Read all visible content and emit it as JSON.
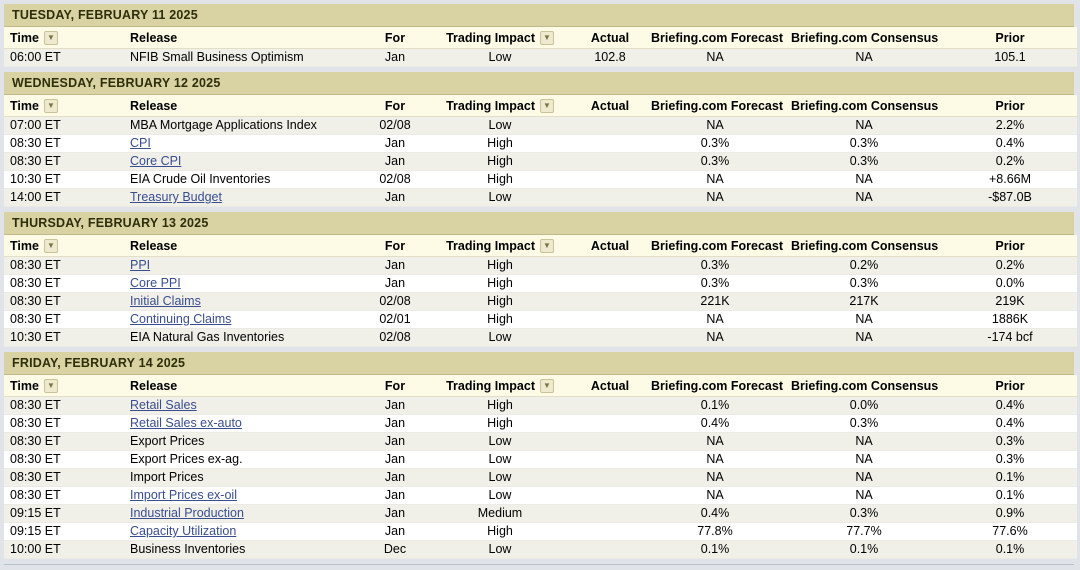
{
  "colors": {
    "page_bg": "#e0e3e7",
    "day_header_bg": "#d9d3a4",
    "header_row_bg": "#fdfae6",
    "row_alt_bg": "#f0f0e9",
    "link": "#3a4d8f"
  },
  "icons": {
    "sort_dropdown": "▼"
  },
  "columns": [
    {
      "id": "time",
      "label": "Time",
      "sortable": true
    },
    {
      "id": "release",
      "label": "Release",
      "sortable": false
    },
    {
      "id": "for",
      "label": "For",
      "sortable": false
    },
    {
      "id": "impact",
      "label": "Trading Impact",
      "sortable": true
    },
    {
      "id": "actual",
      "label": "Actual",
      "sortable": false
    },
    {
      "id": "forecast",
      "label": "Briefing.com Forecast",
      "sortable": false
    },
    {
      "id": "consensus",
      "label": "Briefing.com Consensus",
      "sortable": false
    },
    {
      "id": "prior",
      "label": "Prior",
      "sortable": false
    }
  ],
  "sections": [
    {
      "date_header": "TUESDAY, FEBRUARY 11 2025",
      "rows": [
        {
          "time": "06:00 ET",
          "release": "NFIB Small Business Optimism",
          "release_is_link": false,
          "for": "Jan",
          "impact": "Low",
          "actual": "102.8",
          "forecast": "NA",
          "consensus": "NA",
          "prior": "105.1"
        }
      ]
    },
    {
      "date_header": "WEDNESDAY, FEBRUARY 12 2025",
      "rows": [
        {
          "time": "07:00 ET",
          "release": "MBA Mortgage Applications Index",
          "release_is_link": false,
          "for": "02/08",
          "impact": "Low",
          "actual": "",
          "forecast": "NA",
          "consensus": "NA",
          "prior": "2.2%"
        },
        {
          "time": "08:30 ET",
          "release": "CPI",
          "release_is_link": true,
          "for": "Jan",
          "impact": "High",
          "actual": "",
          "forecast": "0.3%",
          "consensus": "0.3%",
          "prior": "0.4%"
        },
        {
          "time": "08:30 ET",
          "release": "Core CPI",
          "release_is_link": true,
          "for": "Jan",
          "impact": "High",
          "actual": "",
          "forecast": "0.3%",
          "consensus": "0.3%",
          "prior": "0.2%"
        },
        {
          "time": "10:30 ET",
          "release": "EIA Crude Oil Inventories",
          "release_is_link": false,
          "for": "02/08",
          "impact": "High",
          "actual": "",
          "forecast": "NA",
          "consensus": "NA",
          "prior": "+8.66M"
        },
        {
          "time": "14:00 ET",
          "release": "Treasury Budget",
          "release_is_link": true,
          "for": "Jan",
          "impact": "Low",
          "actual": "",
          "forecast": "NA",
          "consensus": "NA",
          "prior": "-$87.0B"
        }
      ]
    },
    {
      "date_header": "THURSDAY, FEBRUARY 13 2025",
      "rows": [
        {
          "time": "08:30 ET",
          "release": "PPI",
          "release_is_link": true,
          "for": "Jan",
          "impact": "High",
          "actual": "",
          "forecast": "0.3%",
          "consensus": "0.2%",
          "prior": "0.2%"
        },
        {
          "time": "08:30 ET",
          "release": "Core PPI",
          "release_is_link": true,
          "for": "Jan",
          "impact": "High",
          "actual": "",
          "forecast": "0.3%",
          "consensus": "0.3%",
          "prior": "0.0%"
        },
        {
          "time": "08:30 ET",
          "release": "Initial Claims",
          "release_is_link": true,
          "for": "02/08",
          "impact": "High",
          "actual": "",
          "forecast": "221K",
          "consensus": "217K",
          "prior": "219K"
        },
        {
          "time": "08:30 ET",
          "release": "Continuing Claims",
          "release_is_link": true,
          "for": "02/01",
          "impact": "High",
          "actual": "",
          "forecast": "NA",
          "consensus": "NA",
          "prior": "1886K"
        },
        {
          "time": "10:30 ET",
          "release": "EIA Natural Gas Inventories",
          "release_is_link": false,
          "for": "02/08",
          "impact": "Low",
          "actual": "",
          "forecast": "NA",
          "consensus": "NA",
          "prior": "-174 bcf"
        }
      ]
    },
    {
      "date_header": "FRIDAY, FEBRUARY 14 2025",
      "rows": [
        {
          "time": "08:30 ET",
          "release": "Retail Sales",
          "release_is_link": true,
          "for": "Jan",
          "impact": "High",
          "actual": "",
          "forecast": "0.1%",
          "consensus": "0.0%",
          "prior": "0.4%"
        },
        {
          "time": "08:30 ET",
          "release": "Retail Sales ex-auto",
          "release_is_link": true,
          "for": "Jan",
          "impact": "High",
          "actual": "",
          "forecast": "0.4%",
          "consensus": "0.3%",
          "prior": "0.4%"
        },
        {
          "time": "08:30 ET",
          "release": "Export Prices",
          "release_is_link": false,
          "for": "Jan",
          "impact": "Low",
          "actual": "",
          "forecast": "NA",
          "consensus": "NA",
          "prior": "0.3%"
        },
        {
          "time": "08:30 ET",
          "release": "Export Prices ex-ag.",
          "release_is_link": false,
          "for": "Jan",
          "impact": "Low",
          "actual": "",
          "forecast": "NA",
          "consensus": "NA",
          "prior": "0.3%"
        },
        {
          "time": "08:30 ET",
          "release": "Import Prices",
          "release_is_link": false,
          "for": "Jan",
          "impact": "Low",
          "actual": "",
          "forecast": "NA",
          "consensus": "NA",
          "prior": "0.1%"
        },
        {
          "time": "08:30 ET",
          "release": "Import Prices ex-oil",
          "release_is_link": true,
          "for": "Jan",
          "impact": "Low",
          "actual": "",
          "forecast": "NA",
          "consensus": "NA",
          "prior": "0.1%"
        },
        {
          "time": "09:15 ET",
          "release": "Industrial Production",
          "release_is_link": true,
          "for": "Jan",
          "impact": "Medium",
          "actual": "",
          "forecast": "0.4%",
          "consensus": "0.3%",
          "prior": "0.9%"
        },
        {
          "time": "09:15 ET",
          "release": "Capacity Utilization",
          "release_is_link": true,
          "for": "Jan",
          "impact": "High",
          "actual": "",
          "forecast": "77.8%",
          "consensus": "77.7%",
          "prior": "77.6%"
        },
        {
          "time": "10:00 ET",
          "release": "Business Inventories",
          "release_is_link": false,
          "for": "Dec",
          "impact": "Low",
          "actual": "",
          "forecast": "0.1%",
          "consensus": "0.1%",
          "prior": "0.1%"
        }
      ]
    }
  ]
}
